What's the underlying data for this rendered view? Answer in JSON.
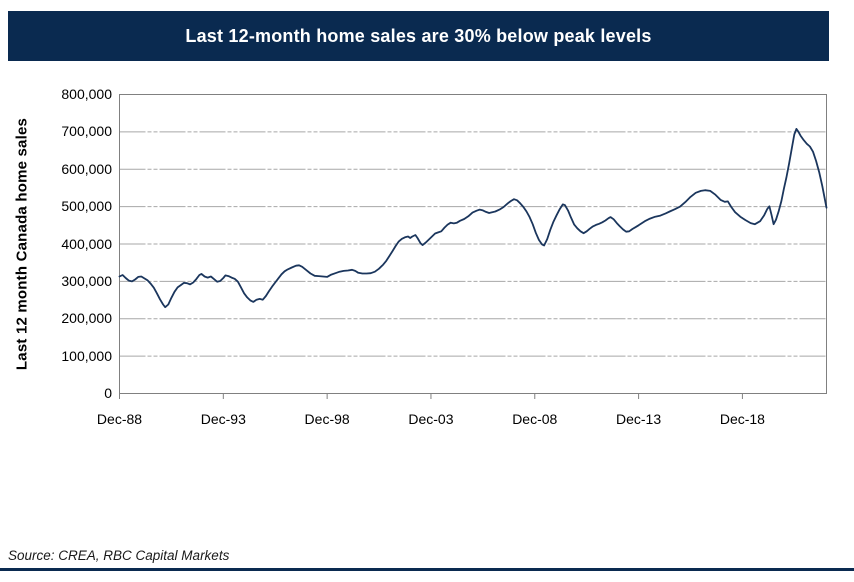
{
  "banner": {
    "title": "Last 12-month home sales are 30% below peak levels",
    "bg_color": "#0A2A50",
    "text_color": "#FFFFFF"
  },
  "source": {
    "text": "Source: CREA, RBC Capital Markets"
  },
  "chart_data": {
    "type": "line",
    "title": "Last 12-month home sales are 30% below peak levels",
    "xlabel": "",
    "ylabel": "Last 12 month Canada home sales",
    "x_unit": "years since Dec-1988 (monthly trailing 12-month sales)",
    "xlim": [
      0,
      34.05
    ],
    "ylim": [
      0,
      800000
    ],
    "grid": "horizontal",
    "legend": "none",
    "line_color": "#1B365D",
    "grid_color": "#A7A7A7",
    "frame_color": "#808080",
    "y_ticks": [
      {
        "value": 0,
        "label": "0"
      },
      {
        "value": 100000,
        "label": "100,000"
      },
      {
        "value": 200000,
        "label": "200,000"
      },
      {
        "value": 300000,
        "label": "300,000"
      },
      {
        "value": 400000,
        "label": "400,000"
      },
      {
        "value": 500000,
        "label": "500,000"
      },
      {
        "value": 600000,
        "label": "600,000"
      },
      {
        "value": 700000,
        "label": "700,000"
      },
      {
        "value": 800000,
        "label": "800,000"
      }
    ],
    "x_ticks": [
      {
        "x": 0,
        "label": "Dec-88"
      },
      {
        "x": 5,
        "label": "Dec-93"
      },
      {
        "x": 10,
        "label": "Dec-98"
      },
      {
        "x": 15,
        "label": "Dec-03"
      },
      {
        "x": 20,
        "label": "Dec-08"
      },
      {
        "x": 25,
        "label": "Dec-13"
      },
      {
        "x": 30,
        "label": "Dec-18"
      }
    ],
    "series": [
      {
        "name": "Last 12 month Canada home sales",
        "color": "#1B365D",
        "points": [
          [
            0,
            313000
          ],
          [
            0.15,
            317000
          ],
          [
            0.3,
            309000
          ],
          [
            0.45,
            302000
          ],
          [
            0.6,
            300000
          ],
          [
            0.75,
            305000
          ],
          [
            0.9,
            312000
          ],
          [
            1.05,
            313000
          ],
          [
            1.2,
            308000
          ],
          [
            1.35,
            303000
          ],
          [
            1.5,
            294000
          ],
          [
            1.65,
            283000
          ],
          [
            1.8,
            268000
          ],
          [
            1.95,
            252000
          ],
          [
            2.1,
            238000
          ],
          [
            2.2,
            231000
          ],
          [
            2.35,
            238000
          ],
          [
            2.5,
            256000
          ],
          [
            2.65,
            272000
          ],
          [
            2.8,
            284000
          ],
          [
            2.95,
            290000
          ],
          [
            3.1,
            296000
          ],
          [
            3.25,
            295000
          ],
          [
            3.4,
            292000
          ],
          [
            3.55,
            297000
          ],
          [
            3.7,
            306000
          ],
          [
            3.85,
            317000
          ],
          [
            3.95,
            320000
          ],
          [
            4.1,
            313000
          ],
          [
            4.25,
            310000
          ],
          [
            4.4,
            313000
          ],
          [
            4.55,
            306000
          ],
          [
            4.7,
            299000
          ],
          [
            4.85,
            301000
          ],
          [
            5,
            309000
          ],
          [
            5.1,
            316000
          ],
          [
            5.25,
            314000
          ],
          [
            5.4,
            310000
          ],
          [
            5.55,
            307000
          ],
          [
            5.7,
            299000
          ],
          [
            5.85,
            284000
          ],
          [
            6,
            268000
          ],
          [
            6.15,
            257000
          ],
          [
            6.3,
            249000
          ],
          [
            6.45,
            245000
          ],
          [
            6.6,
            251000
          ],
          [
            6.75,
            253000
          ],
          [
            6.9,
            251000
          ],
          [
            7.05,
            261000
          ],
          [
            7.2,
            274000
          ],
          [
            7.35,
            286000
          ],
          [
            7.5,
            297000
          ],
          [
            7.65,
            308000
          ],
          [
            7.8,
            319000
          ],
          [
            7.95,
            327000
          ],
          [
            8.1,
            332000
          ],
          [
            8.3,
            337000
          ],
          [
            8.5,
            342000
          ],
          [
            8.65,
            343000
          ],
          [
            8.8,
            339000
          ],
          [
            9,
            330000
          ],
          [
            9.2,
            321000
          ],
          [
            9.4,
            315000
          ],
          [
            9.6,
            314000
          ],
          [
            9.8,
            313000
          ],
          [
            10,
            312000
          ],
          [
            10.2,
            318000
          ],
          [
            10.4,
            322000
          ],
          [
            10.6,
            326000
          ],
          [
            10.8,
            328000
          ],
          [
            11,
            329000
          ],
          [
            11.2,
            331000
          ],
          [
            11.35,
            328000
          ],
          [
            11.5,
            323000
          ],
          [
            11.7,
            321000
          ],
          [
            11.9,
            321000
          ],
          [
            12.1,
            322000
          ],
          [
            12.3,
            326000
          ],
          [
            12.5,
            334000
          ],
          [
            12.7,
            345000
          ],
          [
            12.85,
            355000
          ],
          [
            13,
            368000
          ],
          [
            13.15,
            381000
          ],
          [
            13.3,
            395000
          ],
          [
            13.45,
            407000
          ],
          [
            13.6,
            414000
          ],
          [
            13.75,
            418000
          ],
          [
            13.9,
            420000
          ],
          [
            14,
            416000
          ],
          [
            14.1,
            420000
          ],
          [
            14.25,
            424000
          ],
          [
            14.35,
            416000
          ],
          [
            14.5,
            402000
          ],
          [
            14.6,
            397000
          ],
          [
            14.75,
            404000
          ],
          [
            14.9,
            412000
          ],
          [
            15.05,
            420000
          ],
          [
            15.2,
            428000
          ],
          [
            15.35,
            431000
          ],
          [
            15.5,
            434000
          ],
          [
            15.65,
            444000
          ],
          [
            15.8,
            452000
          ],
          [
            15.95,
            457000
          ],
          [
            16.1,
            455000
          ],
          [
            16.25,
            457000
          ],
          [
            16.4,
            462000
          ],
          [
            16.6,
            467000
          ],
          [
            16.8,
            474000
          ],
          [
            17,
            484000
          ],
          [
            17.2,
            489000
          ],
          [
            17.35,
            492000
          ],
          [
            17.5,
            490000
          ],
          [
            17.65,
            486000
          ],
          [
            17.8,
            483000
          ],
          [
            17.95,
            485000
          ],
          [
            18.1,
            487000
          ],
          [
            18.3,
            492000
          ],
          [
            18.5,
            499000
          ],
          [
            18.7,
            509000
          ],
          [
            18.85,
            515000
          ],
          [
            19,
            520000
          ],
          [
            19.15,
            517000
          ],
          [
            19.3,
            509000
          ],
          [
            19.45,
            499000
          ],
          [
            19.6,
            487000
          ],
          [
            19.75,
            472000
          ],
          [
            19.9,
            453000
          ],
          [
            20.05,
            430000
          ],
          [
            20.2,
            411000
          ],
          [
            20.35,
            399000
          ],
          [
            20.45,
            396000
          ],
          [
            20.6,
            413000
          ],
          [
            20.75,
            438000
          ],
          [
            20.9,
            460000
          ],
          [
            21.05,
            477000
          ],
          [
            21.2,
            493000
          ],
          [
            21.35,
            506000
          ],
          [
            21.45,
            504000
          ],
          [
            21.6,
            490000
          ],
          [
            21.75,
            470000
          ],
          [
            21.9,
            452000
          ],
          [
            22.05,
            442000
          ],
          [
            22.2,
            434000
          ],
          [
            22.35,
            429000
          ],
          [
            22.5,
            434000
          ],
          [
            22.65,
            441000
          ],
          [
            22.8,
            447000
          ],
          [
            22.95,
            451000
          ],
          [
            23.1,
            454000
          ],
          [
            23.25,
            458000
          ],
          [
            23.4,
            463000
          ],
          [
            23.55,
            469000
          ],
          [
            23.65,
            472000
          ],
          [
            23.8,
            466000
          ],
          [
            23.95,
            456000
          ],
          [
            24.1,
            447000
          ],
          [
            24.25,
            439000
          ],
          [
            24.4,
            433000
          ],
          [
            24.55,
            434000
          ],
          [
            24.7,
            440000
          ],
          [
            24.85,
            445000
          ],
          [
            25,
            450000
          ],
          [
            25.3,
            461000
          ],
          [
            25.55,
            468000
          ],
          [
            25.8,
            473000
          ],
          [
            26.05,
            476000
          ],
          [
            26.3,
            482000
          ],
          [
            26.5,
            487000
          ],
          [
            26.75,
            493000
          ],
          [
            27,
            500000
          ],
          [
            27.25,
            512000
          ],
          [
            27.5,
            526000
          ],
          [
            27.75,
            537000
          ],
          [
            28,
            542000
          ],
          [
            28.2,
            544000
          ],
          [
            28.45,
            542000
          ],
          [
            28.7,
            532000
          ],
          [
            28.95,
            518000
          ],
          [
            29.15,
            513000
          ],
          [
            29.3,
            514000
          ],
          [
            29.45,
            500000
          ],
          [
            29.65,
            485000
          ],
          [
            29.9,
            473000
          ],
          [
            30.15,
            464000
          ],
          [
            30.4,
            456000
          ],
          [
            30.6,
            453000
          ],
          [
            30.85,
            461000
          ],
          [
            31.05,
            477000
          ],
          [
            31.2,
            494000
          ],
          [
            31.3,
            501000
          ],
          [
            31.4,
            478000
          ],
          [
            31.5,
            453000
          ],
          [
            31.62,
            465000
          ],
          [
            31.75,
            488000
          ],
          [
            31.88,
            515000
          ],
          [
            32,
            548000
          ],
          [
            32.12,
            578000
          ],
          [
            32.25,
            615000
          ],
          [
            32.4,
            662000
          ],
          [
            32.5,
            693000
          ],
          [
            32.6,
            708000
          ],
          [
            32.7,
            700000
          ],
          [
            32.8,
            690000
          ],
          [
            32.95,
            678000
          ],
          [
            33.1,
            668000
          ],
          [
            33.25,
            661000
          ],
          [
            33.4,
            647000
          ],
          [
            33.55,
            622000
          ],
          [
            33.7,
            592000
          ],
          [
            33.85,
            555000
          ],
          [
            33.95,
            526000
          ],
          [
            34.05,
            497000
          ]
        ]
      }
    ]
  }
}
